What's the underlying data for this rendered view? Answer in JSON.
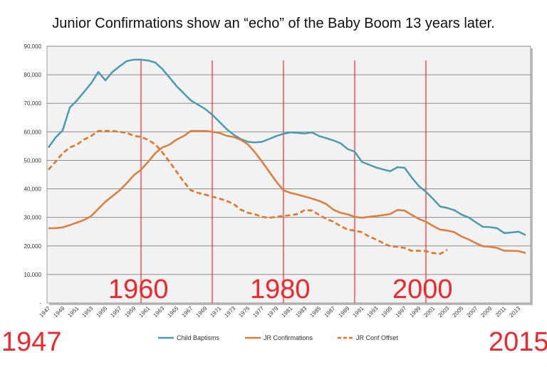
{
  "chart_data": {
    "type": "line",
    "title": "Junior Confirmations show an “echo” of the Baby Boom 13 years later.",
    "xlim": [
      1947,
      2014
    ],
    "ylim": [
      0,
      90000
    ],
    "yticks": [
      0,
      10000,
      20000,
      30000,
      40000,
      50000,
      60000,
      70000,
      80000,
      90000
    ],
    "ytick_labels": [
      "-",
      "10,000",
      "20,000",
      "30,000",
      "40,000",
      "50,000",
      "60,000",
      "70,000",
      "80,000",
      "90,000"
    ],
    "xtick_labels": [
      "1947",
      "1949",
      "1951",
      "1953",
      "1955",
      "1957",
      "1959",
      "1961",
      "1963",
      "1965",
      "1967",
      "1969",
      "1971",
      "1973",
      "1975",
      "1977",
      "1979",
      "1981",
      "1983",
      "1985",
      "1987",
      "1989",
      "1991",
      "1993",
      "1995",
      "1997",
      "1999",
      "2001",
      "2003",
      "2005",
      "2007",
      "2009",
      "2011",
      "2013"
    ],
    "grid": true,
    "legend": "bottom",
    "vlines": [
      1960,
      1970,
      1980,
      1990,
      2000
    ],
    "annotations": [
      "1960",
      "1980",
      "2000",
      "1947",
      "2015"
    ],
    "series": [
      {
        "name": "Child Baptisms",
        "color": "#4a9bb0",
        "style": "solid",
        "start": 1947,
        "values": [
          54500,
          58000,
          60500,
          68500,
          71000,
          74000,
          77000,
          81000,
          78000,
          81000,
          83000,
          84800,
          85300,
          85300,
          85000,
          84300,
          82000,
          79000,
          76000,
          73500,
          71000,
          69500,
          68000,
          66000,
          63500,
          61000,
          59000,
          57500,
          56500,
          56300,
          56500,
          57500,
          58500,
          59300,
          59800,
          59600,
          59400,
          59800,
          58500,
          57800,
          57000,
          56000,
          54000,
          53000,
          49500,
          48500,
          47500,
          46800,
          46200,
          47600,
          47400,
          44000,
          41000,
          39000,
          36500,
          33800,
          33300,
          32500,
          31000,
          30000,
          28300,
          26700,
          26600,
          26200,
          24500,
          24700,
          25000,
          23800
        ]
      },
      {
        "name": "JR Confirmations",
        "color": "#e07b39",
        "style": "solid",
        "start": 1947,
        "values": [
          26200,
          26200,
          26500,
          27300,
          28200,
          29100,
          30500,
          33000,
          35500,
          37500,
          39500,
          42000,
          44800,
          46700,
          49500,
          52500,
          54500,
          55500,
          57300,
          58500,
          60300,
          60300,
          60300,
          60000,
          59600,
          58600,
          58200,
          57200,
          55600,
          52800,
          49500,
          46000,
          42500,
          39500,
          38600,
          38000,
          37300,
          36600,
          35800,
          34700,
          32700,
          31600,
          31100,
          30200,
          29900,
          30200,
          30500,
          30800,
          31200,
          32600,
          32400,
          30900,
          29500,
          28500,
          27000,
          25700,
          25400,
          24800,
          23300,
          22300,
          21000,
          19900,
          19700,
          19300,
          18300,
          18300,
          18200,
          17500
        ]
      },
      {
        "name": "JR Conf Offset",
        "color": "#e8701f",
        "style": "dashed",
        "start": 1947,
        "values": [
          46700,
          49500,
          52500,
          54500,
          55500,
          57300,
          58500,
          60300,
          60300,
          60300,
          60000,
          59600,
          58600,
          58200,
          57200,
          55600,
          52800,
          49500,
          46000,
          42500,
          39500,
          38600,
          38000,
          37300,
          36600,
          35800,
          34700,
          32700,
          31600,
          31100,
          30200,
          29900,
          30200,
          30500,
          30800,
          31200,
          32600,
          32400,
          30900,
          29500,
          28500,
          27000,
          25700,
          25400,
          24800,
          23300,
          22300,
          21000,
          19900,
          19700,
          19300,
          18300,
          18300,
          18200,
          17500,
          17200,
          18700
        ]
      }
    ]
  }
}
